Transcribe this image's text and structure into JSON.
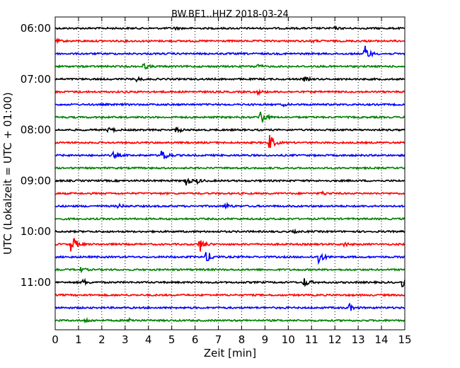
{
  "chart_data": {
    "type": "line",
    "title": "BW.BE1..HHZ 2018-03-24",
    "xlabel": "Zeit  [min]",
    "ylabel": "UTC (Lokalzeit = UTC + 01:00)",
    "xlim": [
      0,
      15
    ],
    "x_ticks": [
      "0",
      "1",
      "2",
      "3",
      "4",
      "5",
      "6",
      "7",
      "8",
      "9",
      "10",
      "11",
      "12",
      "13",
      "14",
      "15"
    ],
    "y_ticks": [
      "06:00",
      "07:00",
      "08:00",
      "09:00",
      "10:00",
      "11:00"
    ],
    "vertical_grid": "dotted",
    "trace_colors": [
      "#000000",
      "#ff0000",
      "#0000ff",
      "#008000"
    ],
    "series": [
      {
        "start": "06:00",
        "events": [
          {
            "t": 5.1,
            "amp": 0.1
          },
          {
            "t": 12.0,
            "amp": 0.1
          }
        ]
      },
      {
        "start": "06:15",
        "events": [
          {
            "t": 0.1,
            "amp": 0.1
          },
          {
            "t": 11.0,
            "amp": 0.1
          }
        ]
      },
      {
        "start": "06:30",
        "events": [
          {
            "t": 13.3,
            "amp": 0.9
          }
        ]
      },
      {
        "start": "06:45",
        "events": [
          {
            "t": 3.8,
            "amp": 0.3
          },
          {
            "t": 8.6,
            "amp": 0.3
          }
        ]
      },
      {
        "start": "07:00",
        "events": [
          {
            "t": 3.5,
            "amp": 0.2
          },
          {
            "t": 10.7,
            "amp": 0.2
          }
        ]
      },
      {
        "start": "07:15",
        "events": [
          {
            "t": 8.7,
            "amp": 0.2
          }
        ]
      },
      {
        "start": "07:30",
        "events": [
          {
            "t": 9.8,
            "amp": 0.1
          }
        ]
      },
      {
        "start": "07:45",
        "events": [
          {
            "t": 8.8,
            "amp": 1.0
          }
        ]
      },
      {
        "start": "08:00",
        "events": [
          {
            "t": 2.3,
            "amp": 0.3
          },
          {
            "t": 5.2,
            "amp": 0.3
          }
        ]
      },
      {
        "start": "08:15",
        "events": [
          {
            "t": 9.2,
            "amp": 0.9
          }
        ]
      },
      {
        "start": "08:30",
        "events": [
          {
            "t": 2.5,
            "amp": 0.3
          },
          {
            "t": 4.6,
            "amp": 0.9
          }
        ]
      },
      {
        "start": "08:45",
        "events": []
      },
      {
        "start": "09:00",
        "events": [
          {
            "t": 5.6,
            "amp": 0.5
          },
          {
            "t": 6.1,
            "amp": 0.2
          }
        ]
      },
      {
        "start": "09:15",
        "events": [
          {
            "t": 11.4,
            "amp": 0.2
          }
        ]
      },
      {
        "start": "09:30",
        "events": [
          {
            "t": 2.7,
            "amp": 0.2
          },
          {
            "t": 7.3,
            "amp": 0.3
          }
        ]
      },
      {
        "start": "09:45",
        "events": []
      },
      {
        "start": "10:00",
        "events": [
          {
            "t": 10.2,
            "amp": 0.1
          }
        ]
      },
      {
        "start": "10:15",
        "events": [
          {
            "t": 0.7,
            "amp": 1.2
          },
          {
            "t": 6.2,
            "amp": 0.8
          },
          {
            "t": 12.4,
            "amp": 0.2
          }
        ]
      },
      {
        "start": "10:30",
        "events": [
          {
            "t": 6.5,
            "amp": 0.7
          },
          {
            "t": 11.3,
            "amp": 0.8
          }
        ]
      },
      {
        "start": "10:45",
        "events": [
          {
            "t": 1.1,
            "amp": 0.2
          }
        ]
      },
      {
        "start": "11:00",
        "events": [
          {
            "t": 1.2,
            "amp": 0.3
          },
          {
            "t": 10.7,
            "amp": 0.5
          },
          {
            "t": 14.9,
            "amp": 0.5
          }
        ]
      },
      {
        "start": "11:15",
        "events": []
      },
      {
        "start": "11:30",
        "events": [
          {
            "t": 12.6,
            "amp": 0.4
          }
        ]
      },
      {
        "start": "11:45",
        "events": [
          {
            "t": 1.3,
            "amp": 0.2
          },
          {
            "t": 3.2,
            "amp": 0.2
          }
        ]
      }
    ]
  }
}
